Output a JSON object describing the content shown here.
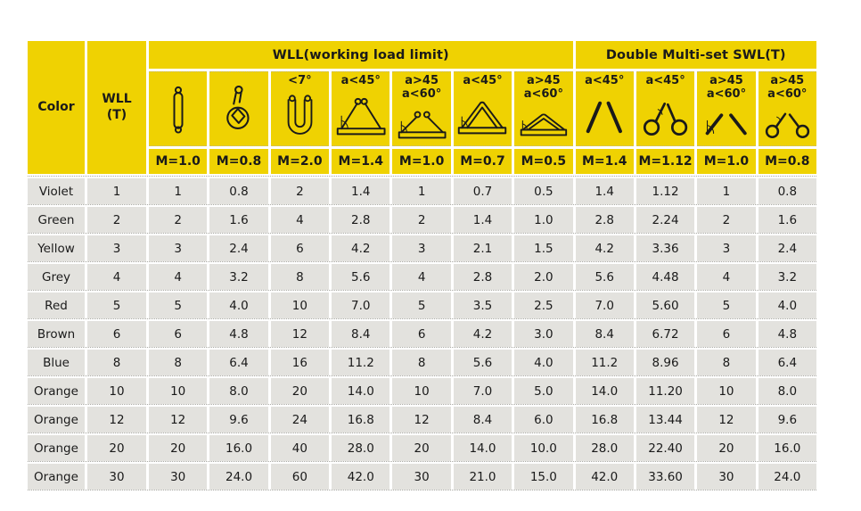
{
  "colors": {
    "header_yellow": "#EFD202",
    "cell_grey": "#E3E2DE",
    "text": "#1a1a1a",
    "dotted_line": "#a9a9a3"
  },
  "table": {
    "header": {
      "color_label": "Color",
      "wll_line1": "WLL",
      "wll_line2": "(T)",
      "group_wll": "WLL(working load limit)",
      "group_double": "Double Multi-set SWL(T)",
      "columns": [
        {
          "icon": "vertical-sling-icon",
          "angle_line1": "",
          "angle_line2": "",
          "m": "M=1.0"
        },
        {
          "icon": "choker-sling-icon",
          "angle_line1": "",
          "angle_line2": "",
          "m": "M=0.8"
        },
        {
          "icon": "basket-u-sling-icon",
          "angle_line1": "<7°",
          "angle_line2": "",
          "m": "M=2.0"
        },
        {
          "icon": "two-leg-beam-sling-icon",
          "angle_line1": "a<45°",
          "angle_line2": "",
          "m": "M=1.4"
        },
        {
          "icon": "two-leg-beam-wide-sling-icon",
          "angle_line1": "a>45",
          "angle_line2": "a<60°",
          "m": "M=1.0"
        },
        {
          "icon": "basket-triangle-sling-icon",
          "angle_line1": "a<45°",
          "angle_line2": "",
          "m": "M=0.7"
        },
        {
          "icon": "basket-triangle-wide-sling-icon",
          "angle_line1": "a>45",
          "angle_line2": "a<60°",
          "m": "M=0.5"
        },
        {
          "icon": "double-leg-sling-icon",
          "angle_line1": "a<45°",
          "angle_line2": "",
          "m": "M=1.4"
        },
        {
          "icon": "double-loop-leg-sling-icon",
          "angle_line1": "a<45°",
          "angle_line2": "",
          "m": "M=1.12"
        },
        {
          "icon": "double-leg-wide-sling-icon",
          "angle_line1": "a>45",
          "angle_line2": "a<60°",
          "m": "M=1.0"
        },
        {
          "icon": "double-loop-leg-wide-sling-icon",
          "angle_line1": "a>45",
          "angle_line2": "a<60°",
          "m": "M=0.8"
        }
      ]
    },
    "rows": [
      {
        "color": "Violet",
        "values": [
          "1",
          "1",
          "0.8",
          "2",
          "1.4",
          "1",
          "0.7",
          "0.5",
          "1.4",
          "1.12",
          "1",
          "0.8"
        ]
      },
      {
        "color": "Green",
        "values": [
          "2",
          "2",
          "1.6",
          "4",
          "2.8",
          "2",
          "1.4",
          "1.0",
          "2.8",
          "2.24",
          "2",
          "1.6"
        ]
      },
      {
        "color": "Yellow",
        "values": [
          "3",
          "3",
          "2.4",
          "6",
          "4.2",
          "3",
          "2.1",
          "1.5",
          "4.2",
          "3.36",
          "3",
          "2.4"
        ]
      },
      {
        "color": "Grey",
        "values": [
          "4",
          "4",
          "3.2",
          "8",
          "5.6",
          "4",
          "2.8",
          "2.0",
          "5.6",
          "4.48",
          "4",
          "3.2"
        ]
      },
      {
        "color": "Red",
        "values": [
          "5",
          "5",
          "4.0",
          "10",
          "7.0",
          "5",
          "3.5",
          "2.5",
          "7.0",
          "5.60",
          "5",
          "4.0"
        ]
      },
      {
        "color": "Brown",
        "values": [
          "6",
          "6",
          "4.8",
          "12",
          "8.4",
          "6",
          "4.2",
          "3.0",
          "8.4",
          "6.72",
          "6",
          "4.8"
        ]
      },
      {
        "color": "Blue",
        "values": [
          "8",
          "8",
          "6.4",
          "16",
          "11.2",
          "8",
          "5.6",
          "4.0",
          "11.2",
          "8.96",
          "8",
          "6.4"
        ]
      },
      {
        "color": "Orange",
        "values": [
          "10",
          "10",
          "8.0",
          "20",
          "14.0",
          "10",
          "7.0",
          "5.0",
          "14.0",
          "11.20",
          "10",
          "8.0"
        ]
      },
      {
        "color": "Orange",
        "values": [
          "12",
          "12",
          "9.6",
          "24",
          "16.8",
          "12",
          "8.4",
          "6.0",
          "16.8",
          "13.44",
          "12",
          "9.6"
        ]
      },
      {
        "color": "Orange",
        "values": [
          "20",
          "20",
          "16.0",
          "40",
          "28.0",
          "20",
          "14.0",
          "10.0",
          "28.0",
          "22.40",
          "20",
          "16.0"
        ]
      },
      {
        "color": "Orange",
        "values": [
          "30",
          "30",
          "24.0",
          "60",
          "42.0",
          "30",
          "21.0",
          "15.0",
          "42.0",
          "33.60",
          "30",
          "24.0"
        ]
      }
    ]
  }
}
